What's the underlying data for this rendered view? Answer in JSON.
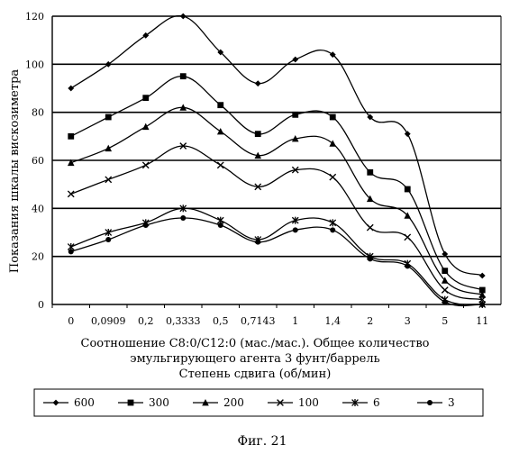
{
  "figure_caption": "Фиг. 21",
  "chart_data": {
    "type": "line",
    "categories": [
      "0",
      "0,0909",
      "0,2",
      "0,3333",
      "0,5",
      "0,7143",
      "1",
      "1,4",
      "2",
      "3",
      "5",
      "11"
    ],
    "ylim": [
      0,
      120
    ],
    "yticks": [
      0,
      20,
      40,
      60,
      80,
      100,
      120
    ],
    "grid": true,
    "ylabel": "Показания шкалы вискозиметра",
    "xlabel_lines": [
      "Соотношение C8:0/C12:0 (мас./мас.). Общее количество",
      "эмульгирующего агента 3 фунт/баррель"
    ],
    "legend_title": "Степень сдвига (об/мин)",
    "legend_position": "bottom",
    "series": [
      {
        "name": "600",
        "marker": "diamond",
        "values": [
          90,
          100,
          112,
          120,
          105,
          92,
          102,
          104,
          78,
          71,
          21,
          12
        ]
      },
      {
        "name": "300",
        "marker": "square",
        "values": [
          70,
          78,
          86,
          95,
          83,
          71,
          79,
          78,
          55,
          48,
          14,
          6
        ]
      },
      {
        "name": "200",
        "marker": "triangle",
        "values": [
          59,
          65,
          74,
          82,
          72,
          62,
          69,
          67,
          44,
          37,
          10,
          4
        ]
      },
      {
        "name": "100",
        "marker": "x",
        "values": [
          46,
          52,
          58,
          66,
          58,
          49,
          56,
          53,
          32,
          28,
          6,
          2
        ]
      },
      {
        "name": "6",
        "marker": "asterisk",
        "values": [
          24,
          30,
          34,
          40,
          35,
          27,
          35,
          34,
          20,
          17,
          2,
          0
        ]
      },
      {
        "name": "3",
        "marker": "circle",
        "values": [
          22,
          27,
          33,
          36,
          33,
          26,
          31,
          31,
          19,
          16,
          1,
          0
        ]
      }
    ]
  }
}
